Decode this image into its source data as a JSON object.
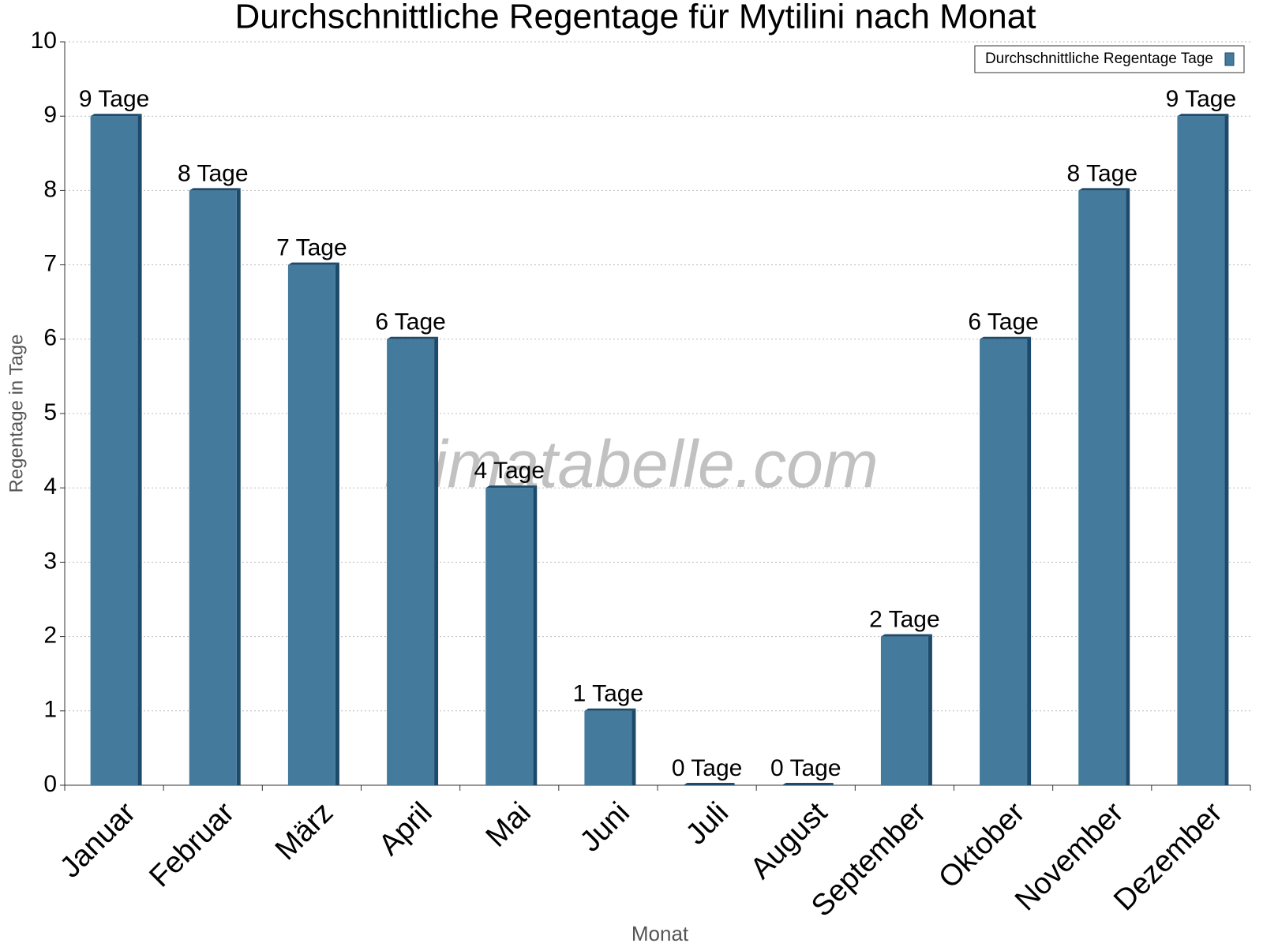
{
  "chart_data": {
    "type": "bar",
    "title": "Durchschnittliche Regentage für Mytilini nach Monat",
    "x_label": "Monat",
    "y_label": "Regentage in Tage",
    "watermark": "klimatabelle.com",
    "categories": [
      "Januar",
      "Februar",
      "März",
      "April",
      "Mai",
      "Juni",
      "Juli",
      "August",
      "September",
      "Oktober",
      "November",
      "Dezember"
    ],
    "series": [
      {
        "name": "Durchschnittliche Regentage Tage",
        "color": "#447a9c",
        "values": [
          9,
          8,
          7,
          6,
          4,
          1,
          0,
          0,
          2,
          6,
          8,
          9
        ],
        "value_labels": [
          "9 Tage",
          "8 Tage",
          "7 Tage",
          "6 Tage",
          "4 Tage",
          "1 Tage",
          "0 Tage",
          "0 Tage",
          "2 Tage",
          "6 Tage",
          "8 Tage",
          "9 Tage"
        ]
      }
    ],
    "ylim": [
      0,
      10
    ],
    "yticks": [
      0,
      1,
      2,
      3,
      4,
      5,
      6,
      7,
      8,
      9,
      10
    ],
    "grid": true,
    "legend": "top-right"
  }
}
